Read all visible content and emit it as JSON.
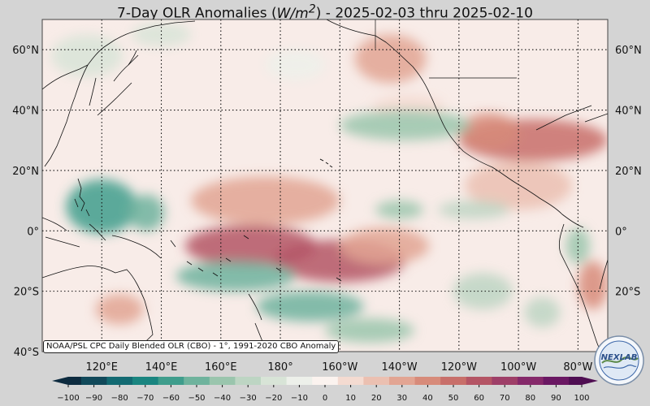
{
  "title_prefix": "7-Day OLR Anomalies (",
  "title_unit": "W/m",
  "title_exp": "2",
  "title_suffix": ") - 2025-02-03 thru 2025-02-10",
  "source_note": "NOAA/PSL CPC Daily Blended OLR (CBO) - 1°, 1991-2020 CBO Anomaly",
  "logo_text": "NEXLAB",
  "map": {
    "extent": {
      "lon_min": 100,
      "lon_max": 290,
      "lat_min": -40,
      "lat_max": 70
    },
    "lat_ticks": [
      {
        "value": 60,
        "label": "60°N"
      },
      {
        "value": 40,
        "label": "40°N"
      },
      {
        "value": 20,
        "label": "20°N"
      },
      {
        "value": 0,
        "label": "0°"
      },
      {
        "value": -20,
        "label": "20°S"
      },
      {
        "value": -40,
        "label": "40°S"
      }
    ],
    "lon_ticks": [
      {
        "value": 120,
        "label": "120°E"
      },
      {
        "value": 140,
        "label": "140°E"
      },
      {
        "value": 160,
        "label": "160°E"
      },
      {
        "value": 180,
        "label": "180°"
      },
      {
        "value": 200,
        "label": "160°W"
      },
      {
        "value": 220,
        "label": "140°W"
      },
      {
        "value": 240,
        "label": "120°W"
      },
      {
        "value": 260,
        "label": "100°W"
      },
      {
        "value": 280,
        "label": "80°W"
      }
    ],
    "anomaly_regions": [
      {
        "lon": 170,
        "lat": -5,
        "rlon": 22,
        "rlat": 7,
        "value": 65
      },
      {
        "lon": 200,
        "lat": -10,
        "rlon": 22,
        "rlat": 7,
        "value": 60
      },
      {
        "lon": 215,
        "lat": -5,
        "rlon": 15,
        "rlat": 6,
        "value": 35
      },
      {
        "lon": 175,
        "lat": 10,
        "rlon": 25,
        "rlat": 8,
        "value": 30
      },
      {
        "lon": 265,
        "lat": 30,
        "rlon": 25,
        "rlat": 7,
        "value": 50
      },
      {
        "lon": 250,
        "lat": 33,
        "rlon": 10,
        "rlat": 6,
        "value": 40
      },
      {
        "lon": 260,
        "lat": 15,
        "rlon": 18,
        "rlat": 8,
        "value": 25
      },
      {
        "lon": 217,
        "lat": 57,
        "rlon": 12,
        "rlat": 8,
        "value": 30
      },
      {
        "lon": 285,
        "lat": -18,
        "rlon": 5,
        "rlat": 8,
        "value": 40
      },
      {
        "lon": 126,
        "lat": -26,
        "rlon": 8,
        "rlat": 5,
        "value": 35
      },
      {
        "lon": 223,
        "lat": 41,
        "rlon": 12,
        "rlat": 4,
        "value": 15
      },
      {
        "lon": 120,
        "lat": 8,
        "rlon": 12,
        "rlat": 9,
        "value": -55
      },
      {
        "lon": 135,
        "lat": 6,
        "rlon": 6,
        "rlat": 6,
        "value": -50
      },
      {
        "lon": 165,
        "lat": -15,
        "rlon": 20,
        "rlat": 5,
        "value": -45
      },
      {
        "lon": 190,
        "lat": -25,
        "rlon": 18,
        "rlat": 5,
        "value": -50
      },
      {
        "lon": 210,
        "lat": -33,
        "rlon": 15,
        "rlat": 4,
        "value": -40
      },
      {
        "lon": 222,
        "lat": 35,
        "rlon": 22,
        "rlat": 5,
        "value": -35
      },
      {
        "lon": 220,
        "lat": 7,
        "rlon": 8,
        "rlat": 3,
        "value": -40
      },
      {
        "lon": 245,
        "lat": 7,
        "rlon": 12,
        "rlat": 3,
        "value": -30
      },
      {
        "lon": 280,
        "lat": -5,
        "rlon": 4,
        "rlat": 6,
        "value": -35
      },
      {
        "lon": 248,
        "lat": -20,
        "rlon": 10,
        "rlat": 6,
        "value": -25
      },
      {
        "lon": 268,
        "lat": -27,
        "rlon": 6,
        "rlat": 5,
        "value": -25
      },
      {
        "lon": 115,
        "lat": 58,
        "rlon": 12,
        "rlat": 7,
        "value": -15
      },
      {
        "lon": 140,
        "lat": 65,
        "rlon": 10,
        "rlat": 4,
        "value": -15
      },
      {
        "lon": 185,
        "lat": 55,
        "rlon": 10,
        "rlat": 5,
        "value": -10
      }
    ]
  },
  "colorbar": {
    "ticks": [
      -100,
      -90,
      -80,
      -70,
      -60,
      -50,
      -40,
      -30,
      -20,
      -10,
      0,
      10,
      20,
      30,
      40,
      50,
      60,
      70,
      80,
      90,
      100
    ],
    "colors": [
      "#0d2b3f",
      "#11495a",
      "#136a72",
      "#1a8580",
      "#3f9d8c",
      "#6fb39d",
      "#9ac5ad",
      "#bdd5c3",
      "#d8e4d7",
      "#edf0ea",
      "#fbf3ef",
      "#f4dbd1",
      "#ebc0b1",
      "#e2a593",
      "#d78b7a",
      "#c86f6a",
      "#b45565",
      "#9e3f68",
      "#85296a",
      "#6a1863",
      "#4f0e52"
    ]
  }
}
